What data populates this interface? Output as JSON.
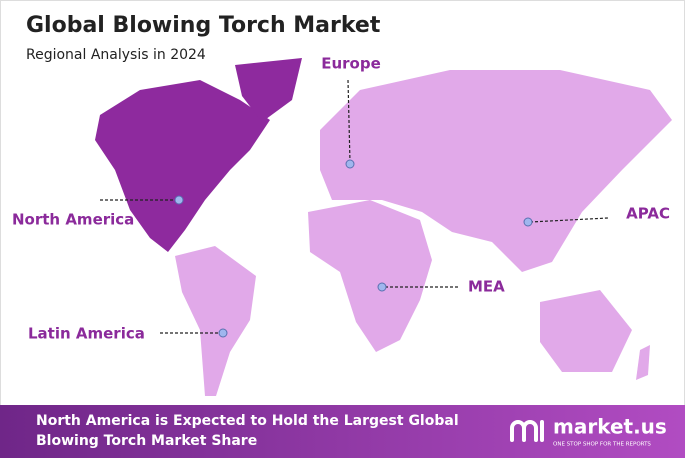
{
  "header": {
    "title": "Global Blowing Torch Market",
    "subtitle": "Regional Analysis in 2024"
  },
  "regions": [
    {
      "label": "Europe"
    },
    {
      "label": "North America"
    },
    {
      "label": "APAC"
    },
    {
      "label": "MEA"
    },
    {
      "label": "Latin America"
    }
  ],
  "footer": {
    "headline": [
      "North America is Expected to Hold the Largest Global",
      "Blowing Torch Market Share"
    ],
    "brand": "market.us",
    "tagline": "ONE STOP SHOP FOR THE REPORTS"
  }
}
